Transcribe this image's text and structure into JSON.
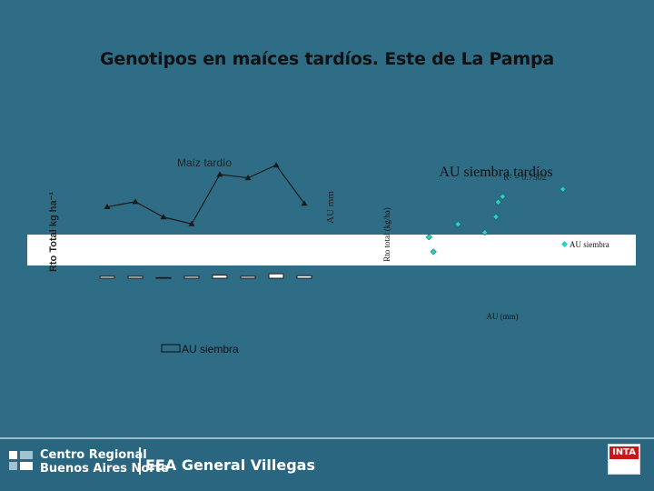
{
  "slide": {
    "title": "Genotipos en maíces tardíos. Este de La Pampa"
  },
  "colors": {
    "background": "#2f6d86",
    "line_series": "#1a1a1a",
    "scatter_series": "#2ecfc0",
    "footer": "#2a6680"
  },
  "chart_data": [
    {
      "type": "line",
      "title": "Maíz tardío",
      "ylabel": "Rto Total kg ha⁻¹",
      "y2label": "AU mm",
      "series": [
        {
          "values": [
            840,
            900,
            720,
            640,
            1220,
            1180,
            1330,
            880
          ]
        },
        {
          "name": "AU siembra",
          "type": "bar",
          "values": [
            3,
            3,
            1,
            3,
            5,
            3,
            7,
            4
          ]
        }
      ],
      "legend": "bottom",
      "grid": false
    },
    {
      "type": "scatter",
      "title": "AU siembra tardíos",
      "annotation": "R² = 0.7502",
      "xlabel": "AU (mm)",
      "ylabel": "Rto total (kg/ha)",
      "series": [
        {
          "name": "AU siembra",
          "points": [
            [
              20,
              4200
            ],
            [
              22,
              3400
            ],
            [
              33,
              4900
            ],
            [
              45,
              4450
            ],
            [
              50,
              5300
            ],
            [
              51,
              6100
            ],
            [
              53,
              6400
            ],
            [
              80,
              6800
            ]
          ]
        }
      ],
      "legend": "right",
      "grid": false
    }
  ],
  "footer": {
    "org_line1": "Centro Regional",
    "org_line2": "Buenos Aires Norte",
    "unit": "EEA General Villegas",
    "logo_text": "INTA"
  }
}
